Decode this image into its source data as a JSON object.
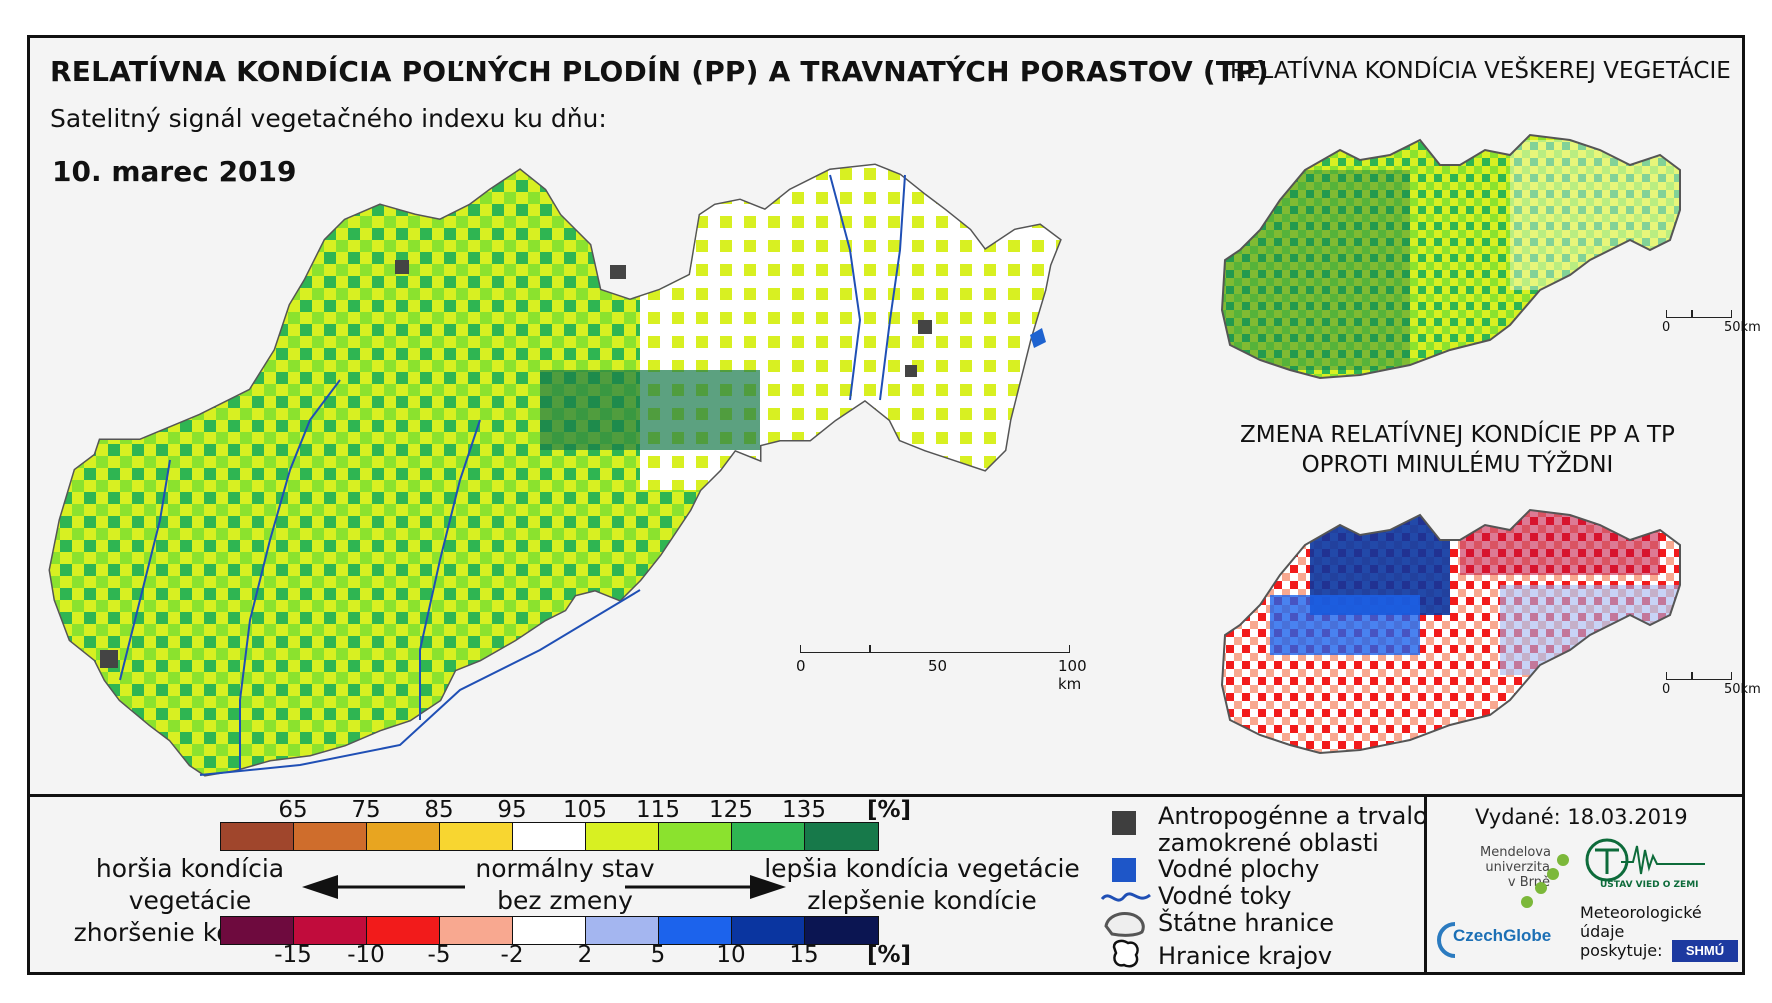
{
  "header": {
    "title": "RELATÍVNA KONDÍCIA POĽNÝCH PLODÍN (PP) A TRAVNATÝCH PORASTOV (TP)",
    "subtitle": "Satelitný signál vegetačného indexu ku dňu:",
    "date": "10. marec 2019"
  },
  "right_panel": {
    "top_title": "RELATÍVNA KONDÍCIA VEŠKEREJ VEGETÁCIE",
    "bottom_title_line1": "ZMENA RELATÍVNEJ KONDÍCIE PP A TP",
    "bottom_title_line2": "OPROTI MINULÉMU TÝŽDNI",
    "scale_top": {
      "zero": "0",
      "end": "50km"
    },
    "scale_bottom": {
      "zero": "0",
      "end": "50km"
    }
  },
  "main_map": {
    "scale": {
      "zero": "0",
      "mid": "50",
      "end": "100 km"
    }
  },
  "legend": {
    "condition_ticks": [
      "65",
      "75",
      "85",
      "95",
      "105",
      "115",
      "125",
      "135"
    ],
    "condition_unit": "[%]",
    "condition_colors": [
      "#a0462c",
      "#cf6d2c",
      "#e8a520",
      "#f8d630",
      "#ffffff",
      "#d8f022",
      "#8be22e",
      "#2fb552",
      "#17794a"
    ],
    "change_ticks": [
      "-15",
      "-10",
      "-5",
      "-2",
      "2",
      "5",
      "10",
      "15"
    ],
    "change_unit": "[%]",
    "change_colors": [
      "#6e0a3e",
      "#c10c3c",
      "#f21b1b",
      "#f8a890",
      "#ffffff",
      "#a4b6f0",
      "#1c63ec",
      "#0a35a0",
      "#0b1552"
    ],
    "left_line1": "horšia kondícia vegetácie",
    "left_line2": "zhoršenie kondície",
    "center_line1": "normálny stav",
    "center_line2": "bez zmeny",
    "right_line1": "lepšia kondícia vegetácie",
    "right_line2": "zlepšenie kondície",
    "items": {
      "anthropogenic_1": "Antropogénne a trvalo",
      "anthropogenic_2": "zamokrené oblasti",
      "water": "Vodné plochy",
      "rivers": "Vodné toky",
      "borders": "Štátne hranice",
      "regions": "Hranice krajov"
    }
  },
  "footer": {
    "issued": "Vydané: 18.03.2019",
    "mendel_1": "Mendelova",
    "mendel_2": "univerzita",
    "mendel_3": "v Brně",
    "czechglobe": "CzechGlobe",
    "uvz": "ÚSTAV VIED O ZEMI",
    "met_1": "Meteorologické",
    "met_2": "údaje",
    "met_3": "poskytuje:",
    "shmu": "SHMÚ"
  }
}
